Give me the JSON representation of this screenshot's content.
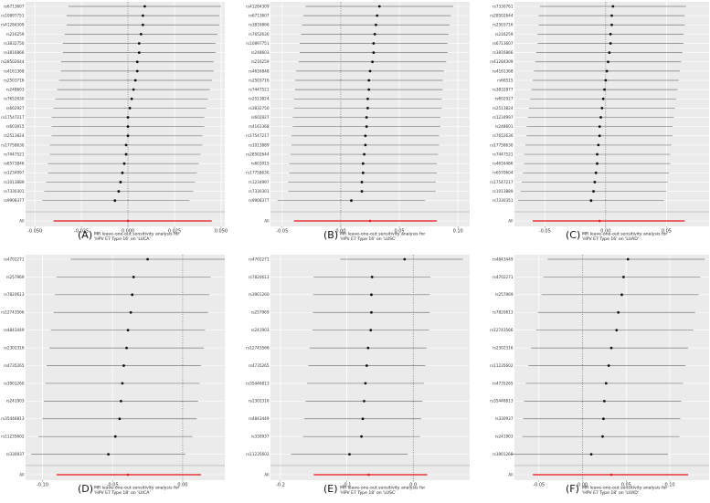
{
  "chart_data": [
    {
      "panel": "A",
      "type": "forest",
      "caption": "MR leave-one-out sensitivity analysis for 'HPV E7 Type 16' on 'LUCA'",
      "xlim": [
        -0.055,
        0.052
      ],
      "xticks": [
        -0.05,
        -0.025,
        0.0,
        0.025,
        0.05
      ],
      "xtick_labels": [
        "-0.050",
        "-0.025",
        "0.000",
        "0.025",
        "0.050"
      ],
      "rows": [
        {
          "snp": "rs6713607",
          "est": 0.009,
          "lo": -0.032,
          "hi": 0.05
        },
        {
          "snp": "rs10897751",
          "est": 0.008,
          "lo": -0.033,
          "hi": 0.049
        },
        {
          "snp": "rs41284309",
          "est": 0.008,
          "lo": -0.033,
          "hi": 0.049
        },
        {
          "snp": "rs216259",
          "est": 0.007,
          "lo": -0.034,
          "hi": 0.048
        },
        {
          "snp": "rs3832750",
          "est": 0.006,
          "lo": -0.035,
          "hi": 0.047
        },
        {
          "snp": "rs3816866",
          "est": 0.006,
          "lo": -0.035,
          "hi": 0.047
        },
        {
          "snp": "rs28502644",
          "est": 0.005,
          "lo": -0.036,
          "hi": 0.046
        },
        {
          "snp": "rs4161368",
          "est": 0.005,
          "lo": -0.036,
          "hi": 0.046
        },
        {
          "snp": "rs2503716",
          "est": 0.004,
          "lo": -0.037,
          "hi": 0.045
        },
        {
          "snp": "rs248603",
          "est": 0.003,
          "lo": -0.038,
          "hi": 0.044
        },
        {
          "snp": "rs7652630",
          "est": 0.002,
          "lo": -0.039,
          "hi": 0.043
        },
        {
          "snp": "rs602927",
          "est": 0.001,
          "lo": -0.04,
          "hi": 0.042
        },
        {
          "snp": "rs17547217",
          "est": 0.0,
          "lo": -0.041,
          "hi": 0.041
        },
        {
          "snp": "rs603915",
          "est": 0.0,
          "lo": -0.041,
          "hi": 0.041
        },
        {
          "snp": "rs2513824",
          "est": 0.0,
          "lo": -0.041,
          "hi": 0.04
        },
        {
          "snp": "rs17758630",
          "est": -0.001,
          "lo": -0.042,
          "hi": 0.04
        },
        {
          "snp": "rs7447521",
          "est": -0.001,
          "lo": -0.042,
          "hi": 0.039
        },
        {
          "snp": "rs6573846",
          "est": -0.002,
          "lo": -0.043,
          "hi": 0.038
        },
        {
          "snp": "rs1234997",
          "est": -0.003,
          "lo": -0.043,
          "hi": 0.037
        },
        {
          "snp": "rs1013889",
          "est": -0.004,
          "lo": -0.044,
          "hi": 0.036
        },
        {
          "snp": "rs7330301",
          "est": -0.005,
          "lo": -0.045,
          "hi": 0.035
        },
        {
          "snp": "rs9908377",
          "est": -0.007,
          "lo": -0.046,
          "hi": 0.033
        }
      ],
      "all": {
        "label": "All",
        "est": 0.0,
        "lo": -0.04,
        "hi": 0.045
      }
    },
    {
      "panel": "B",
      "type": "forest",
      "caption": "MR leave-one-out sensitivity analysis for 'HPV E7 Type 16' on 'LUSC'",
      "xlim": [
        -0.06,
        0.11
      ],
      "xticks": [
        -0.05,
        0.0,
        0.05,
        0.1
      ],
      "xtick_labels": [
        "-0.05",
        "0.00",
        "0.05",
        "0.10"
      ],
      "rows": [
        {
          "snp": "rs41284309",
          "est": 0.033,
          "lo": -0.03,
          "hi": 0.096
        },
        {
          "snp": "rs6713607",
          "est": 0.031,
          "lo": -0.032,
          "hi": 0.094
        },
        {
          "snp": "rs3816866",
          "est": 0.03,
          "lo": -0.033,
          "hi": 0.093
        },
        {
          "snp": "rs7652630",
          "est": 0.029,
          "lo": -0.034,
          "hi": 0.092
        },
        {
          "snp": "rs10897751",
          "est": 0.028,
          "lo": -0.035,
          "hi": 0.091
        },
        {
          "snp": "rs248603",
          "est": 0.028,
          "lo": -0.035,
          "hi": 0.091
        },
        {
          "snp": "rs216259",
          "est": 0.027,
          "lo": -0.036,
          "hi": 0.09
        },
        {
          "snp": "rs4616848",
          "est": 0.025,
          "lo": -0.038,
          "hi": 0.088
        },
        {
          "snp": "rs2503716",
          "est": 0.024,
          "lo": -0.039,
          "hi": 0.087
        },
        {
          "snp": "rs7447521",
          "est": 0.024,
          "lo": -0.039,
          "hi": 0.087
        },
        {
          "snp": "rs2513824",
          "est": 0.023,
          "lo": -0.04,
          "hi": 0.086
        },
        {
          "snp": "rs3832750",
          "est": 0.023,
          "lo": -0.04,
          "hi": 0.086
        },
        {
          "snp": "rs602927",
          "est": 0.022,
          "lo": -0.041,
          "hi": 0.085
        },
        {
          "snp": "rs4161368",
          "est": 0.022,
          "lo": -0.041,
          "hi": 0.085
        },
        {
          "snp": "rs17547217",
          "est": 0.021,
          "lo": -0.042,
          "hi": 0.084
        },
        {
          "snp": "rs1013889",
          "est": 0.021,
          "lo": -0.042,
          "hi": 0.084
        },
        {
          "snp": "rs28502644",
          "est": 0.02,
          "lo": -0.043,
          "hi": 0.083
        },
        {
          "snp": "rs603915",
          "est": 0.019,
          "lo": -0.044,
          "hi": 0.082
        },
        {
          "snp": "rs17758630",
          "est": 0.019,
          "lo": -0.044,
          "hi": 0.082
        },
        {
          "snp": "rs1234997",
          "est": 0.018,
          "lo": -0.045,
          "hi": 0.081
        },
        {
          "snp": "rs7330301",
          "est": 0.018,
          "lo": -0.045,
          "hi": 0.081
        },
        {
          "snp": "rs9908377",
          "est": 0.009,
          "lo": -0.054,
          "hi": 0.072
        }
      ],
      "all": {
        "label": "All",
        "est": 0.025,
        "lo": -0.04,
        "hi": 0.082
      }
    },
    {
      "panel": "C",
      "type": "forest",
      "caption": "MR leave-one-out sensitivity analysis for 'HPV E7 Type 16' on 'LUAD'",
      "xlim": [
        -0.075,
        0.085
      ],
      "xticks": [
        -0.05,
        0.0,
        0.05
      ],
      "xtick_labels": [
        "-0.05",
        "0.00",
        "0.05"
      ],
      "rows": [
        {
          "snp": "rs7330761",
          "est": 0.006,
          "lo": -0.054,
          "hi": 0.066
        },
        {
          "snp": "rs28502644",
          "est": 0.005,
          "lo": -0.055,
          "hi": 0.065
        },
        {
          "snp": "rs2503716",
          "est": 0.005,
          "lo": -0.055,
          "hi": 0.065
        },
        {
          "snp": "rs216259",
          "est": 0.004,
          "lo": -0.056,
          "hi": 0.064
        },
        {
          "snp": "rs6713607",
          "est": 0.004,
          "lo": -0.056,
          "hi": 0.064
        },
        {
          "snp": "rs3816866",
          "est": 0.003,
          "lo": -0.057,
          "hi": 0.063
        },
        {
          "snp": "rs41284309",
          "est": 0.002,
          "lo": -0.058,
          "hi": 0.062
        },
        {
          "snp": "rs4161368",
          "est": 0.001,
          "lo": -0.059,
          "hi": 0.061
        },
        {
          "snp": "rs66515",
          "est": 0.0,
          "lo": -0.06,
          "hi": 0.06
        },
        {
          "snp": "rs3832877",
          "est": -0.001,
          "lo": -0.061,
          "hi": 0.059
        },
        {
          "snp": "rs602927",
          "est": -0.002,
          "lo": -0.062,
          "hi": 0.058
        },
        {
          "snp": "rs2513824",
          "est": -0.003,
          "lo": -0.063,
          "hi": 0.057
        },
        {
          "snp": "rs1234997",
          "est": -0.004,
          "lo": -0.064,
          "hi": 0.056
        },
        {
          "snp": "rs248601",
          "est": -0.005,
          "lo": -0.065,
          "hi": 0.055
        },
        {
          "snp": "rs7652630",
          "est": -0.005,
          "lo": -0.065,
          "hi": 0.055
        },
        {
          "snp": "rs17758630",
          "est": -0.006,
          "lo": -0.066,
          "hi": 0.054
        },
        {
          "snp": "rs7447521",
          "est": -0.007,
          "lo": -0.067,
          "hi": 0.053
        },
        {
          "snp": "rs4616486",
          "est": -0.007,
          "lo": -0.067,
          "hi": 0.053
        },
        {
          "snp": "rs6570604",
          "est": -0.008,
          "lo": -0.068,
          "hi": 0.052
        },
        {
          "snp": "rs17547217",
          "est": -0.009,
          "lo": -0.069,
          "hi": 0.051
        },
        {
          "snp": "rs1013889",
          "est": -0.01,
          "lo": -0.07,
          "hi": 0.05
        },
        {
          "snp": "rs7330351",
          "est": -0.012,
          "lo": -0.072,
          "hi": 0.048
        }
      ],
      "all": {
        "label": "All",
        "est": -0.005,
        "lo": -0.06,
        "hi": 0.065
      }
    },
    {
      "panel": "D",
      "type": "forest",
      "caption": "MR leave-one-out sensitivity analysis for 'HPV E7 Type 18' on 'LUCA'",
      "xlim": [
        -0.112,
        0.03
      ],
      "xticks": [
        -0.1,
        -0.05,
        0.0
      ],
      "xtick_labels": [
        "-0.10",
        "-0.05",
        "0.00"
      ],
      "rows": [
        {
          "snp": "rs4702271",
          "est": -0.025,
          "lo": -0.08,
          "hi": 0.03
        },
        {
          "snp": "rs257969",
          "est": -0.035,
          "lo": -0.09,
          "hi": 0.02
        },
        {
          "snp": "rs7820613",
          "est": -0.036,
          "lo": -0.091,
          "hi": 0.019
        },
        {
          "snp": "rs12743566",
          "est": -0.037,
          "lo": -0.092,
          "hi": 0.018
        },
        {
          "snp": "rs4843449",
          "est": -0.039,
          "lo": -0.094,
          "hi": 0.016
        },
        {
          "snp": "rs2302316",
          "est": -0.04,
          "lo": -0.095,
          "hi": 0.015
        },
        {
          "snp": "rs4735265",
          "est": -0.042,
          "lo": -0.097,
          "hi": 0.013
        },
        {
          "snp": "rs3901260",
          "est": -0.043,
          "lo": -0.098,
          "hi": 0.012
        },
        {
          "snp": "rs241903",
          "est": -0.044,
          "lo": -0.099,
          "hi": 0.011
        },
        {
          "snp": "rs35446813",
          "est": -0.045,
          "lo": -0.1,
          "hi": 0.01
        },
        {
          "snp": "rs11235602",
          "est": -0.048,
          "lo": -0.103,
          "hi": 0.007
        },
        {
          "snp": "rs330937",
          "est": -0.053,
          "lo": -0.108,
          "hi": 0.002
        }
      ],
      "all": {
        "label": "All",
        "est": -0.039,
        "lo": -0.09,
        "hi": 0.013
      }
    },
    {
      "panel": "E",
      "type": "forest",
      "caption": "MR leave-one-out sensitivity analysis for 'HPV E7 Type 18' on 'LUSC'",
      "xlim": [
        -0.215,
        0.085
      ],
      "xticks": [
        -0.2,
        -0.1,
        0.0
      ],
      "xtick_labels": [
        "-0.2",
        "-0.1",
        "0.0"
      ],
      "rows": [
        {
          "snp": "rs4702271",
          "est": -0.013,
          "lo": -0.11,
          "hi": 0.075
        },
        {
          "snp": "rs7820613",
          "est": -0.062,
          "lo": -0.15,
          "hi": 0.026
        },
        {
          "snp": "rs3901260",
          "est": -0.063,
          "lo": -0.151,
          "hi": 0.025
        },
        {
          "snp": "rs257969",
          "est": -0.063,
          "lo": -0.151,
          "hi": 0.025
        },
        {
          "snp": "rs241903",
          "est": -0.064,
          "lo": -0.152,
          "hi": 0.024
        },
        {
          "snp": "rs12743566",
          "est": -0.068,
          "lo": -0.156,
          "hi": 0.02
        },
        {
          "snp": "rs4735265",
          "est": -0.07,
          "lo": -0.158,
          "hi": 0.018
        },
        {
          "snp": "rs35446813",
          "est": -0.072,
          "lo": -0.16,
          "hi": 0.016
        },
        {
          "snp": "rs2302316",
          "est": -0.074,
          "lo": -0.162,
          "hi": 0.014
        },
        {
          "snp": "rs4843449",
          "est": -0.076,
          "lo": -0.164,
          "hi": 0.012
        },
        {
          "snp": "rs330937",
          "est": -0.078,
          "lo": -0.166,
          "hi": 0.01
        },
        {
          "snp": "rs11235602",
          "est": -0.096,
          "lo": -0.184,
          "hi": -0.008
        }
      ],
      "all": {
        "label": "All",
        "est": -0.067,
        "lo": -0.15,
        "hi": 0.021
      }
    },
    {
      "panel": "F",
      "type": "forest",
      "caption": "MR leave-one-out sensitivity analysis for 'HPV E7 Type 18' on 'LUAD'",
      "xlim": [
        -0.078,
        0.145
      ],
      "xticks": [
        -0.05,
        0.0,
        0.05,
        0.1
      ],
      "xtick_labels": [
        "-0.05",
        "0.00",
        "0.05",
        "0.10"
      ],
      "rows": [
        {
          "snp": "rs4843449",
          "est": 0.052,
          "lo": -0.04,
          "hi": 0.14
        },
        {
          "snp": "rs4702271",
          "est": 0.047,
          "lo": -0.045,
          "hi": 0.135
        },
        {
          "snp": "rs257969",
          "est": 0.045,
          "lo": -0.047,
          "hi": 0.133
        },
        {
          "snp": "rs7820613",
          "est": 0.041,
          "lo": -0.051,
          "hi": 0.129
        },
        {
          "snp": "rs12743566",
          "est": 0.039,
          "lo": -0.053,
          "hi": 0.127
        },
        {
          "snp": "rs2302316",
          "est": 0.033,
          "lo": -0.059,
          "hi": 0.121
        },
        {
          "snp": "rs11235602",
          "est": 0.03,
          "lo": -0.062,
          "hi": 0.118
        },
        {
          "snp": "rs4735265",
          "est": 0.027,
          "lo": -0.065,
          "hi": 0.115
        },
        {
          "snp": "rs35446813",
          "est": 0.025,
          "lo": -0.067,
          "hi": 0.113
        },
        {
          "snp": "rs330937",
          "est": 0.024,
          "lo": -0.068,
          "hi": 0.112
        },
        {
          "snp": "rs241903",
          "est": 0.023,
          "lo": -0.069,
          "hi": 0.111
        },
        {
          "snp": "rs3901260",
          "est": 0.01,
          "lo": -0.082,
          "hi": 0.098
        }
      ],
      "all": {
        "label": "All",
        "est": 0.033,
        "lo": -0.057,
        "hi": 0.121
      }
    }
  ]
}
